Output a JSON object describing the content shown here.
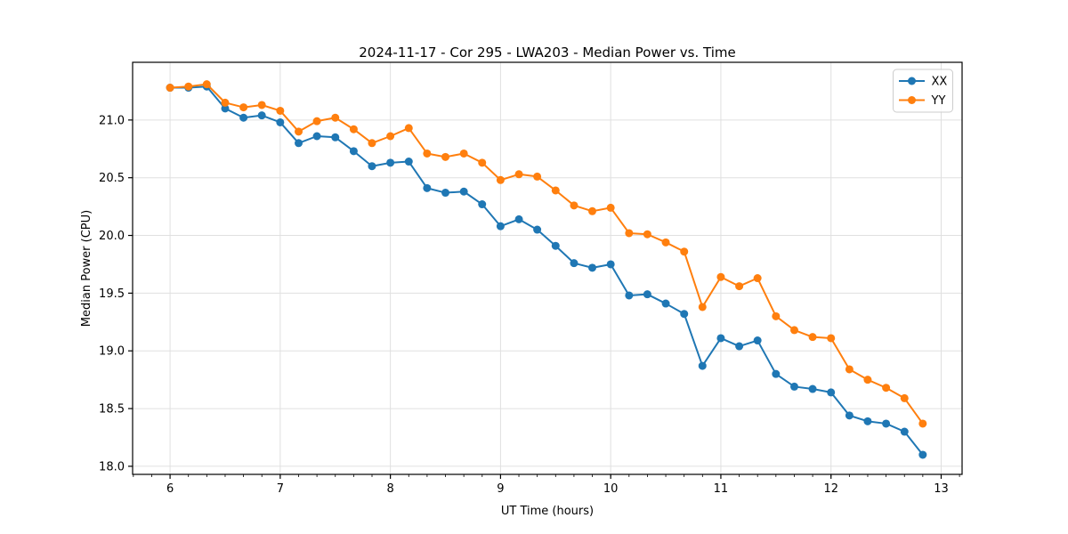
{
  "chart_data": {
    "type": "line",
    "title": "2024-11-17 - Cor 295 - LWA203 - Median Power vs. Time",
    "xlabel": "UT Time (hours)",
    "ylabel": "Median Power (CPU)",
    "xlim": [
      5.66,
      13.19
    ],
    "ylim": [
      17.93,
      21.5
    ],
    "x_ticks": [
      6,
      7,
      8,
      9,
      10,
      11,
      12,
      13
    ],
    "x_tick_labels": [
      "6",
      "7",
      "8",
      "9",
      "10",
      "11",
      "12",
      "13"
    ],
    "x_minor_tick_step": 0.166667,
    "y_ticks": [
      18.0,
      18.5,
      19.0,
      19.5,
      20.0,
      20.5,
      21.0
    ],
    "y_tick_labels": [
      "18.0",
      "18.5",
      "19.0",
      "19.5",
      "20.0",
      "20.5",
      "21.0"
    ],
    "grid": true,
    "grid_color": "#e0e0e0",
    "legend_position": "upper right",
    "x": [
      6.0,
      6.167,
      6.333,
      6.5,
      6.667,
      6.833,
      7.0,
      7.167,
      7.333,
      7.5,
      7.667,
      7.833,
      8.0,
      8.167,
      8.333,
      8.5,
      8.667,
      8.833,
      9.0,
      9.167,
      9.333,
      9.5,
      9.667,
      9.833,
      10.0,
      10.167,
      10.333,
      10.5,
      10.667,
      10.833,
      11.0,
      11.167,
      11.333,
      11.5,
      11.667,
      11.833,
      12.0,
      12.167,
      12.333,
      12.5,
      12.667,
      12.833
    ],
    "series": [
      {
        "name": "XX",
        "color": "#1f77b4",
        "values": [
          21.28,
          21.28,
          21.29,
          21.1,
          21.02,
          21.04,
          20.98,
          20.8,
          20.86,
          20.85,
          20.73,
          20.6,
          20.63,
          20.64,
          20.41,
          20.37,
          20.38,
          20.27,
          20.08,
          20.14,
          20.05,
          19.91,
          19.76,
          19.72,
          19.75,
          19.48,
          19.49,
          19.41,
          19.32,
          18.87,
          19.11,
          19.04,
          19.09,
          18.8,
          18.69,
          18.67,
          18.64,
          18.44,
          18.39,
          18.37,
          18.3,
          18.1
        ]
      },
      {
        "name": "YY",
        "color": "#ff7f0e",
        "values": [
          21.28,
          21.29,
          21.31,
          21.15,
          21.11,
          21.13,
          21.08,
          20.9,
          20.99,
          21.02,
          20.92,
          20.8,
          20.86,
          20.93,
          20.71,
          20.68,
          20.71,
          20.63,
          20.48,
          20.53,
          20.51,
          20.39,
          20.26,
          20.21,
          20.24,
          20.02,
          20.01,
          19.94,
          19.86,
          19.38,
          19.64,
          19.56,
          19.63,
          19.3,
          19.18,
          19.12,
          19.11,
          18.84,
          18.75,
          18.68,
          18.59,
          18.37
        ]
      }
    ]
  }
}
